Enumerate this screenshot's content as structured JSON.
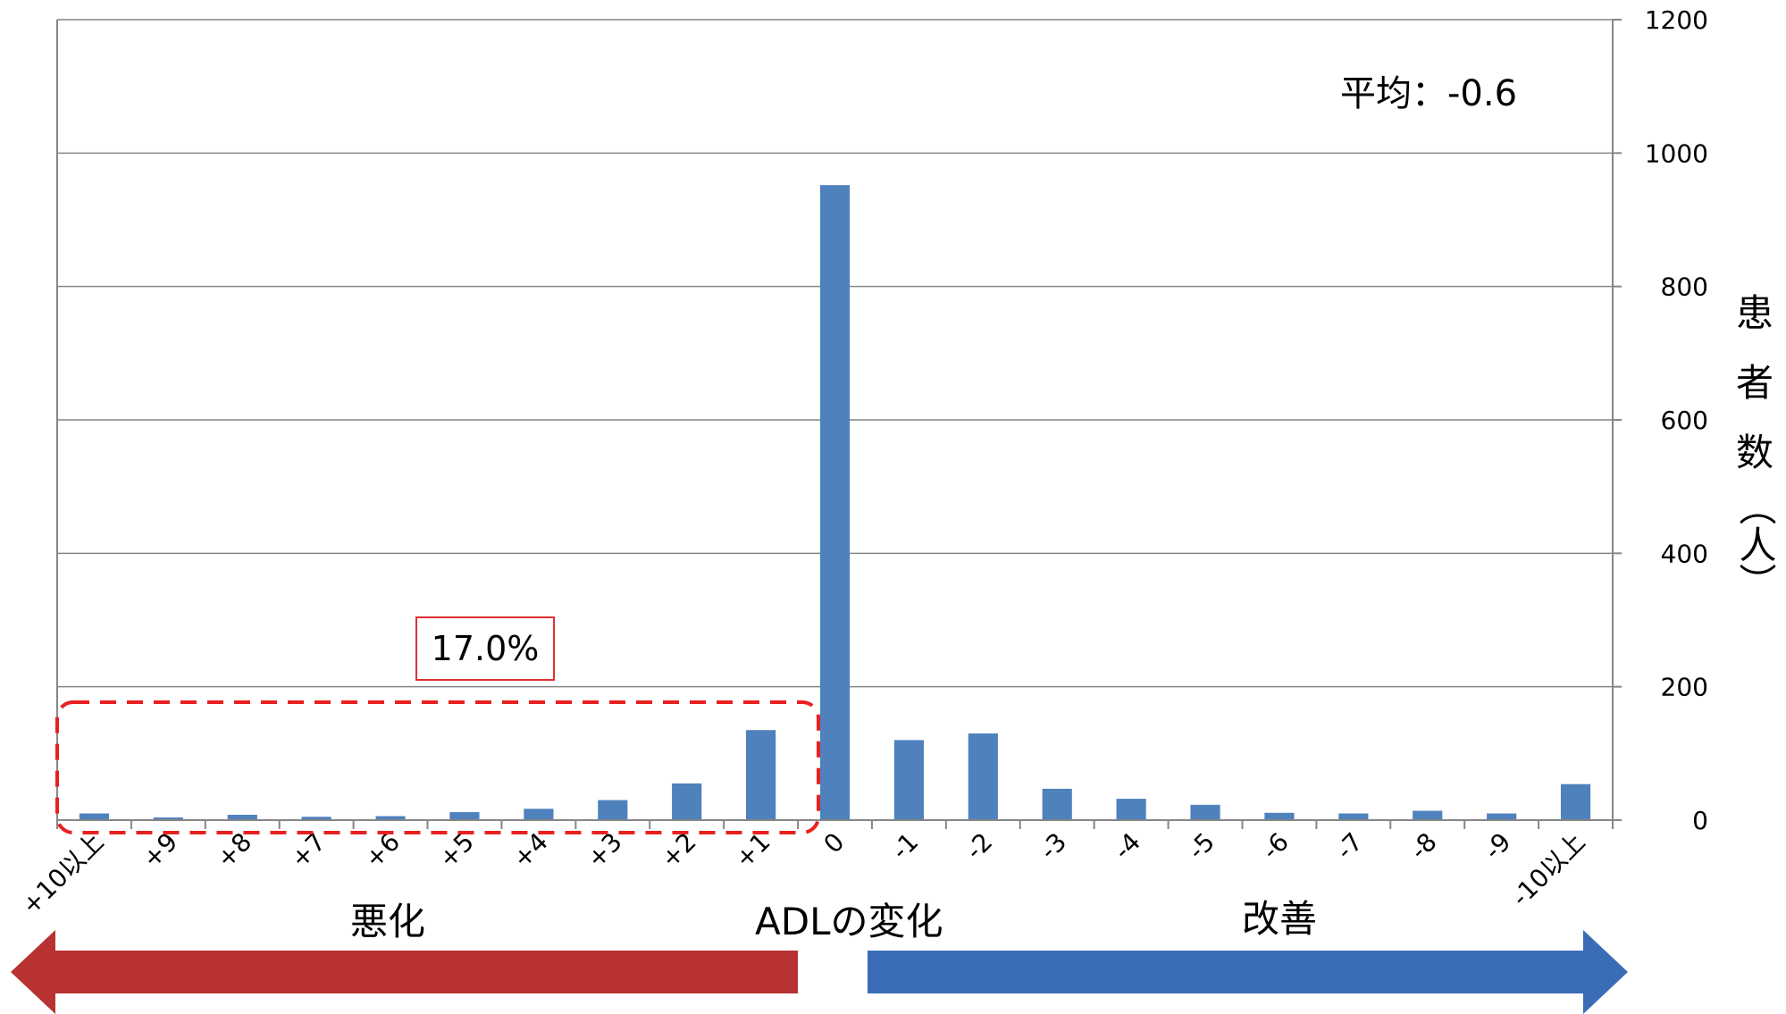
{
  "chart_data": {
    "type": "bar",
    "categories": [
      "+10以上",
      "+9",
      "+8",
      "+7",
      "+6",
      "+5",
      "+4",
      "+3",
      "+2",
      "+1",
      "0",
      "-1",
      "-2",
      "-3",
      "-4",
      "-5",
      "-6",
      "-7",
      "-8",
      "-9",
      "-10以上"
    ],
    "values": [
      10,
      4,
      8,
      5,
      6,
      12,
      17,
      30,
      55,
      135,
      952,
      120,
      130,
      47,
      32,
      23,
      11,
      10,
      14,
      10,
      54
    ],
    "xlabel": "ADLの変化",
    "ylabel": "患者数（人）",
    "ylim": [
      0,
      1200
    ],
    "yticks": [
      0,
      200,
      400,
      600,
      800,
      1000,
      1200
    ],
    "y_axis_side": "right",
    "grid": true,
    "bar_color": "#4f81bd",
    "annotations": {
      "mean": "平均：-0.6",
      "worse_share": "17.0%",
      "worse_label": "悪化",
      "better_label": "改善"
    },
    "colors": {
      "worse_arrow": "#b83232",
      "better_arrow": "#3a6db5",
      "highlight_box": "#e82020"
    }
  }
}
